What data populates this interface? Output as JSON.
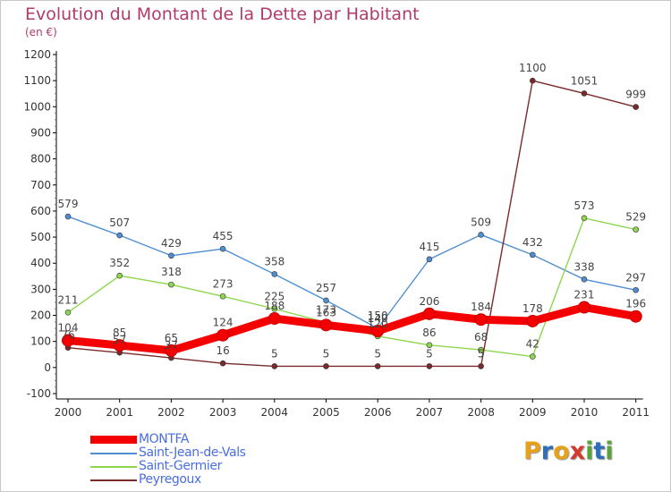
{
  "header": {
    "title": "Evolution du Montant de la Dette par Habitant",
    "subtitle": "(en €)"
  },
  "brand": {
    "letters": [
      "P",
      "r",
      "o",
      "x",
      "i",
      "t",
      "i"
    ],
    "colors": [
      "#e8a21a",
      "#2f6fb8",
      "#e8a21a",
      "#d33b2c",
      "#5aa23a",
      "#2f6fb8",
      "#5aa23a"
    ]
  },
  "chart_data": {
    "type": "line",
    "title": "Evolution du Montant de la Dette par Habitant",
    "subtitle": "(en €)",
    "x": [
      "2000",
      "2001",
      "2002",
      "2003",
      "2004",
      "2005",
      "2006",
      "2007",
      "2008",
      "2009",
      "2010",
      "2011"
    ],
    "y_ticks": [
      "-100",
      "0",
      "100",
      "200",
      "300",
      "400",
      "500",
      "600",
      "700",
      "800",
      "900",
      "1000",
      "1100",
      "1200"
    ],
    "ylim": [
      -100,
      1200
    ],
    "grid": false,
    "legend_position": "bottom-left",
    "series": [
      {
        "name": "MONTFA",
        "color": "#f40000",
        "emphasis": true,
        "values": [
          104,
          85,
          65,
          124,
          188,
          163,
          140,
          206,
          184,
          178,
          231,
          196
        ],
        "labels": [
          "104",
          "85",
          "65",
          "124",
          "188",
          "163",
          "140",
          "206",
          "184",
          "178",
          "231",
          "196"
        ]
      },
      {
        "name": "Saint-Jean-de-Vals",
        "color": "#4f8ed0",
        "emphasis": false,
        "values": [
          579,
          507,
          429,
          455,
          358,
          257,
          150,
          415,
          509,
          432,
          338,
          297
        ],
        "labels": [
          "579",
          "507",
          "429",
          "455",
          "358",
          "257",
          "150",
          "415",
          "509",
          "432",
          "338",
          "297"
        ]
      },
      {
        "name": "Saint-Germier",
        "color": "#8ed650",
        "emphasis": false,
        "values": [
          211,
          352,
          318,
          273,
          225,
          173,
          120,
          86,
          68,
          42,
          573,
          529
        ],
        "labels": [
          "211",
          "352",
          "318",
          "273",
          "225",
          "173",
          "120",
          "86",
          "68",
          "42",
          "573",
          "529"
        ]
      },
      {
        "name": "Peyregoux",
        "color": "#7a2a2a",
        "emphasis": false,
        "values": [
          76,
          57,
          37,
          16,
          5,
          5,
          5,
          5,
          5,
          1100,
          1051,
          999
        ],
        "labels": [
          "76",
          "57",
          "37",
          "16",
          "5",
          "5",
          "5",
          "5",
          "5",
          "1100",
          "1051",
          "999"
        ]
      }
    ]
  }
}
